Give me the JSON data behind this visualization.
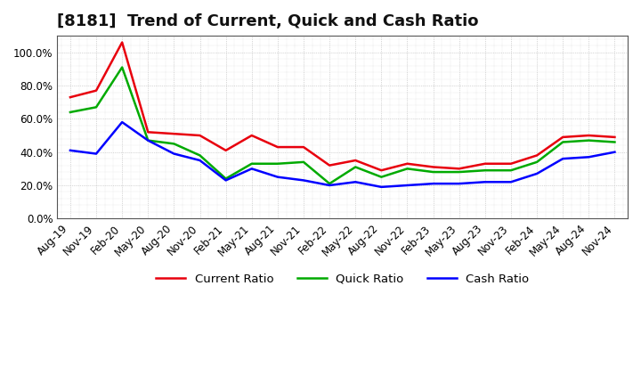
{
  "title": "[8181]  Trend of Current, Quick and Cash Ratio",
  "x_labels": [
    "Aug-19",
    "Nov-19",
    "Feb-20",
    "May-20",
    "Aug-20",
    "Nov-20",
    "Feb-21",
    "May-21",
    "Aug-21",
    "Nov-21",
    "Feb-22",
    "May-22",
    "Aug-22",
    "Nov-22",
    "Feb-23",
    "May-23",
    "Aug-23",
    "Nov-23",
    "Feb-24",
    "May-24",
    "Aug-24",
    "Nov-24"
  ],
  "current_ratio": [
    0.73,
    0.77,
    1.06,
    0.52,
    0.51,
    0.5,
    0.41,
    0.5,
    0.43,
    0.43,
    0.32,
    0.35,
    0.29,
    0.33,
    0.31,
    0.3,
    0.33,
    0.33,
    0.38,
    0.49,
    0.5,
    0.49
  ],
  "quick_ratio": [
    0.64,
    0.67,
    0.91,
    0.47,
    0.45,
    0.38,
    0.24,
    0.33,
    0.33,
    0.34,
    0.21,
    0.31,
    0.25,
    0.3,
    0.28,
    0.28,
    0.29,
    0.29,
    0.34,
    0.46,
    0.47,
    0.46
  ],
  "cash_ratio": [
    0.41,
    0.39,
    0.58,
    0.47,
    0.39,
    0.35,
    0.23,
    0.3,
    0.25,
    0.23,
    0.2,
    0.22,
    0.19,
    0.2,
    0.21,
    0.21,
    0.22,
    0.22,
    0.27,
    0.36,
    0.37,
    0.4
  ],
  "current_color": "#e8000d",
  "quick_color": "#00aa00",
  "cash_color": "#0000ff",
  "bg_color": "#ffffff",
  "plot_bg_color": "#ffffff",
  "grid_color": "#aaaaaa",
  "ylim": [
    0.0,
    1.1
  ],
  "yticks": [
    0.0,
    0.2,
    0.4,
    0.6,
    0.8,
    1.0
  ],
  "legend_labels": [
    "Current Ratio",
    "Quick Ratio",
    "Cash Ratio"
  ],
  "title_fontsize": 13,
  "tick_fontsize": 8.5
}
